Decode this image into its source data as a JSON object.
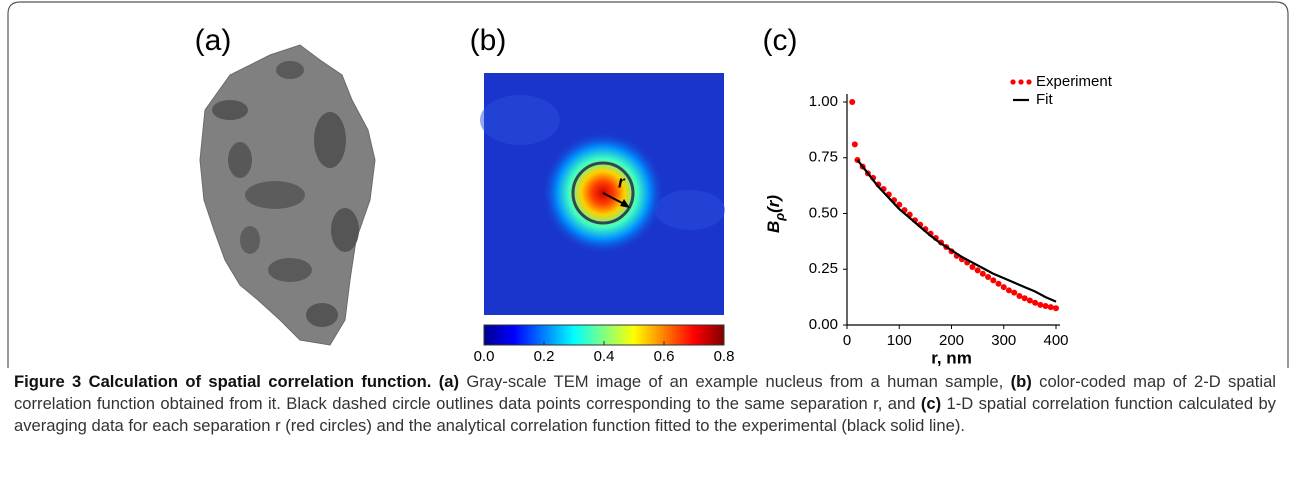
{
  "panels": {
    "a": {
      "label": "(a)"
    },
    "b": {
      "label": "(b)",
      "r_label": "r",
      "colorbar": {
        "lim": [
          0,
          0.8
        ],
        "ticks": [
          {
            "value": 0,
            "label": "0.0"
          },
          {
            "value": 0.2,
            "label": "0.2"
          },
          {
            "value": 0.4,
            "label": "0.4"
          },
          {
            "value": 0.6,
            "label": "0.6"
          },
          {
            "value": 0.8,
            "label": "0.8"
          }
        ]
      }
    },
    "c": {
      "label": "(c)"
    }
  },
  "chart_data": {
    "type": "scatter-line",
    "ylabel": {
      "main": "B",
      "sub": "ρ",
      "arg": "(r)"
    },
    "xlabel": "r, nm",
    "xlim": [
      0,
      400
    ],
    "ylim": [
      0,
      1
    ],
    "xticks": [
      0,
      100,
      200,
      300,
      400
    ],
    "yticks": [
      {
        "value": 0,
        "label": "0.00"
      },
      {
        "value": 0.25,
        "label": "0.25"
      },
      {
        "value": 0.5,
        "label": "0.50"
      },
      {
        "value": 0.75,
        "label": "0.75"
      },
      {
        "value": 1,
        "label": "1.00"
      }
    ],
    "legend": "upper right",
    "series": [
      {
        "name": "Experiment",
        "color": "#ff0000",
        "kind": "markers",
        "x": [
          10,
          15,
          20,
          30,
          40,
          50,
          60,
          70,
          80,
          90,
          100,
          110,
          120,
          130,
          140,
          150,
          160,
          170,
          180,
          190,
          200,
          210,
          220,
          230,
          240,
          250,
          260,
          270,
          280,
          290,
          300,
          310,
          320,
          330,
          340,
          350,
          360,
          370,
          380,
          390,
          400
        ],
        "values": [
          1.0,
          0.81,
          0.74,
          0.71,
          0.68,
          0.66,
          0.63,
          0.61,
          0.585,
          0.56,
          0.54,
          0.515,
          0.495,
          0.47,
          0.45,
          0.43,
          0.41,
          0.39,
          0.37,
          0.35,
          0.33,
          0.31,
          0.295,
          0.28,
          0.26,
          0.245,
          0.23,
          0.215,
          0.2,
          0.185,
          0.17,
          0.155,
          0.145,
          0.13,
          0.12,
          0.11,
          0.1,
          0.09,
          0.085,
          0.08,
          0.075
        ]
      },
      {
        "name": "Fit",
        "color": "#000000",
        "kind": "line",
        "x": [
          20,
          40,
          60,
          80,
          100,
          120,
          140,
          160,
          180,
          200,
          220,
          240,
          260,
          280,
          300,
          320,
          340,
          360,
          380,
          400
        ],
        "values": [
          0.74,
          0.68,
          0.62,
          0.57,
          0.52,
          0.48,
          0.44,
          0.4,
          0.365,
          0.335,
          0.305,
          0.28,
          0.255,
          0.23,
          0.21,
          0.19,
          0.17,
          0.15,
          0.125,
          0.105
        ]
      }
    ]
  },
  "caption": [
    {
      "text": "Figure 3 Calculation of spatial correlation function.",
      "bold": true
    },
    {
      "text": " "
    },
    {
      "text": "(a)",
      "bold": true
    },
    {
      "text": " Gray-scale TEM image of an example nucleus from a human sample, "
    },
    {
      "text": "(b)",
      "bold": true
    },
    {
      "text": " color-coded map of 2-D spatial correlation function obtained from it. Black dashed circle outlines data points corresponding to the same separation r, and "
    },
    {
      "text": "(c)",
      "bold": true
    },
    {
      "text": " 1-D spatial correlation function calculated by averaging data for each separation r (red circles) and the analytical correlation function fitted to the experimental (black solid line)."
    }
  ]
}
